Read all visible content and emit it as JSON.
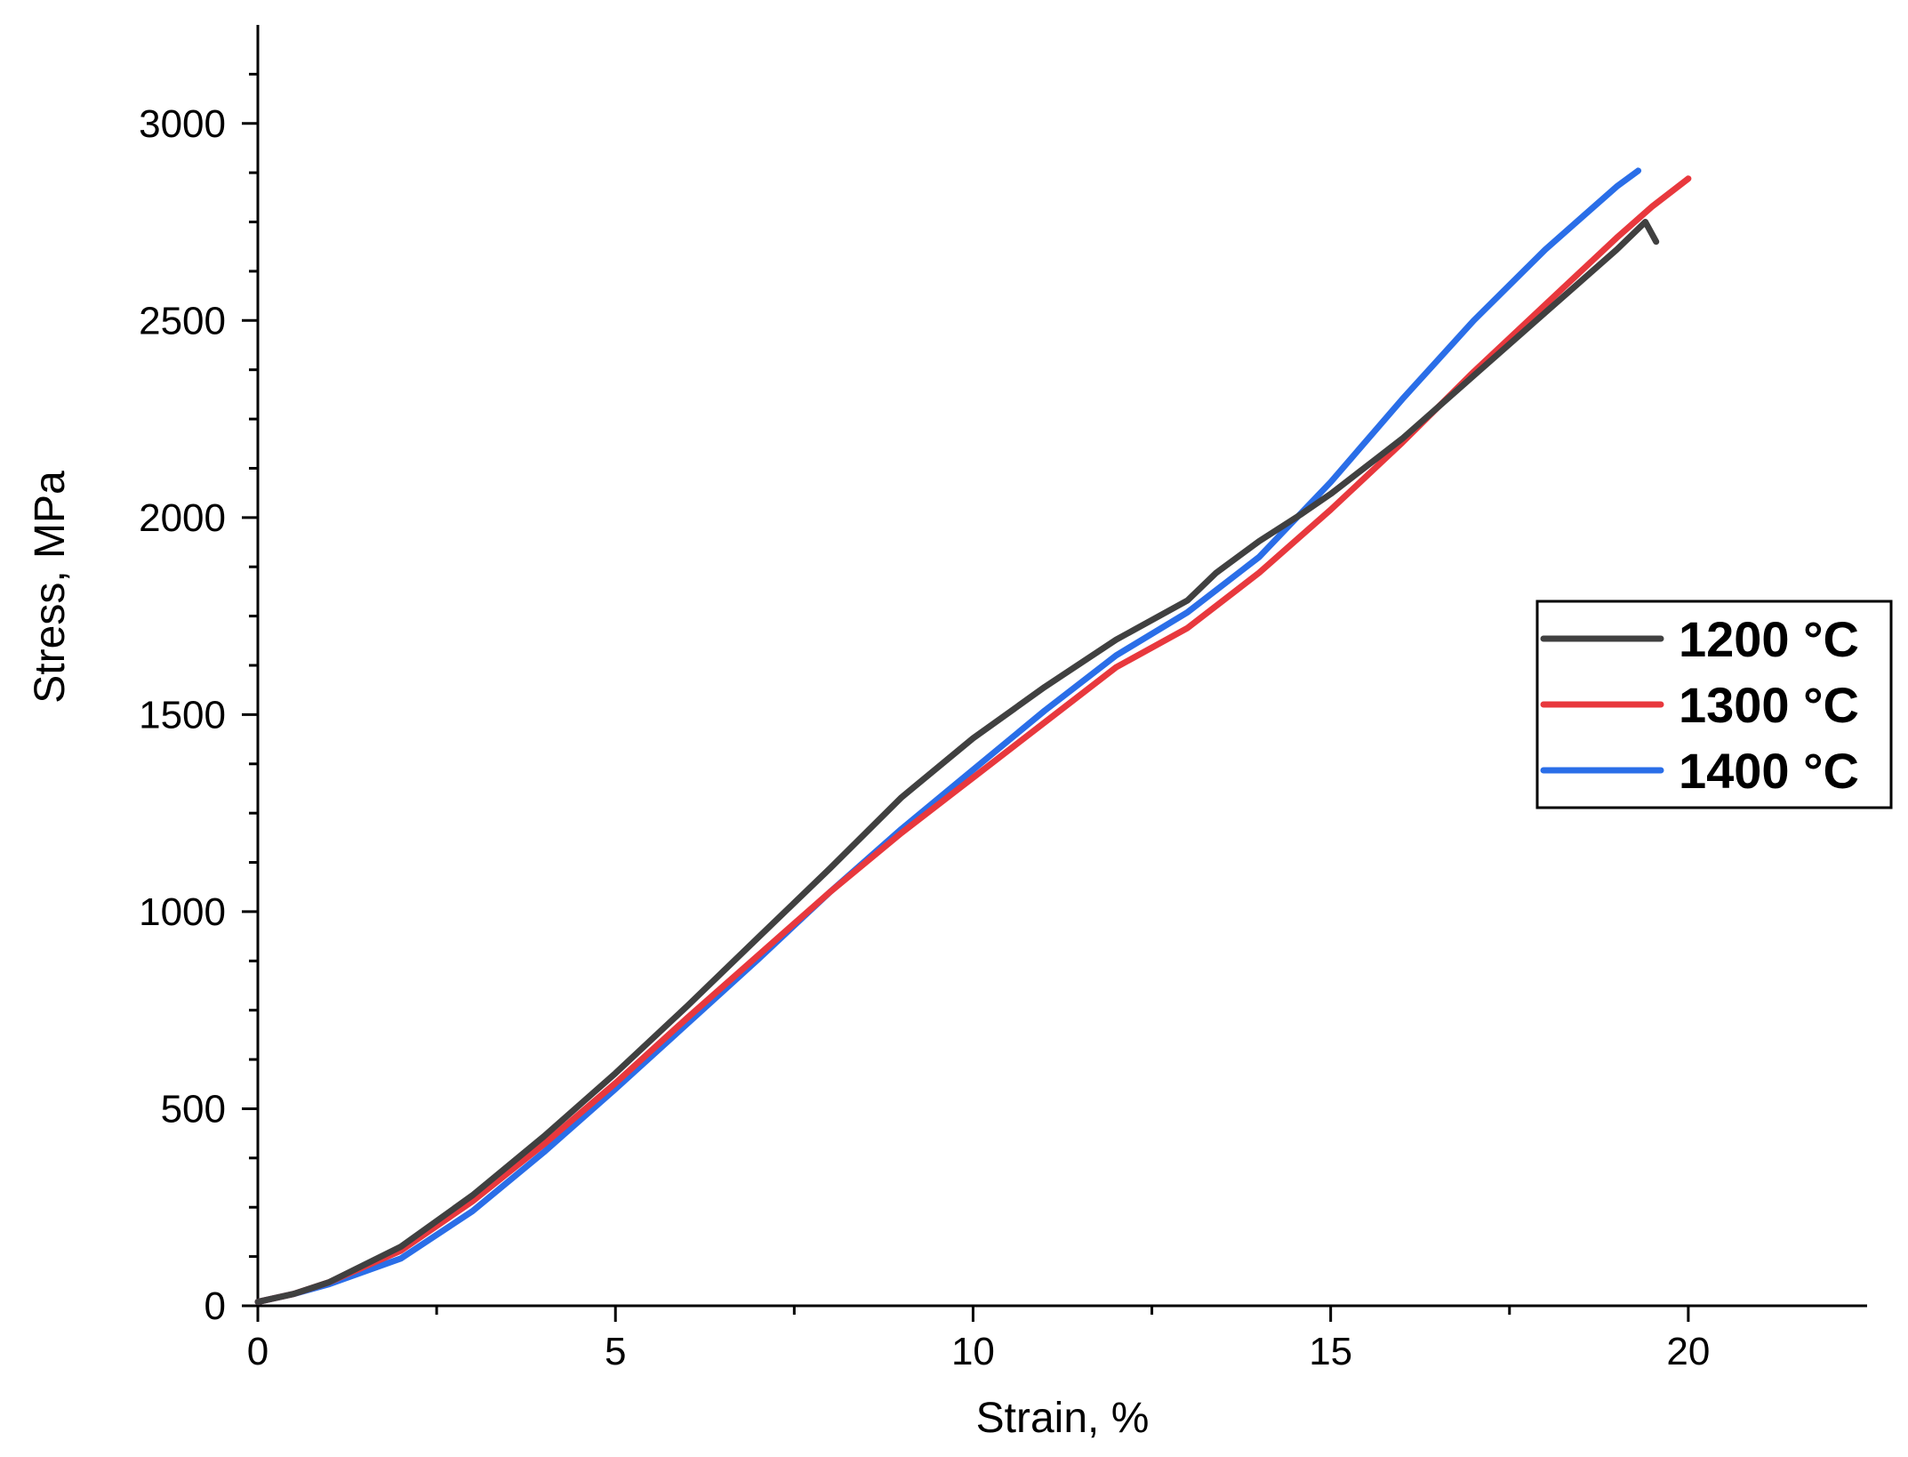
{
  "chart_data": {
    "type": "line",
    "title": "",
    "xlabel": "Strain, %",
    "ylabel": "Stress, MPa",
    "xlim": [
      0,
      22.5
    ],
    "ylim": [
      0,
      3250
    ],
    "xticks": [
      0,
      5,
      10,
      15,
      20
    ],
    "yticks": [
      0,
      500,
      1000,
      1500,
      2000,
      2500,
      3000
    ],
    "grid": false,
    "legend_position": "right",
    "series": [
      {
        "name": "1200 °C",
        "color": "#404040",
        "points": [
          [
            0,
            10
          ],
          [
            0.5,
            30
          ],
          [
            1,
            60
          ],
          [
            2,
            150
          ],
          [
            3,
            280
          ],
          [
            4,
            430
          ],
          [
            5,
            590
          ],
          [
            6,
            760
          ],
          [
            7,
            935
          ],
          [
            8,
            1110
          ],
          [
            9,
            1290
          ],
          [
            10,
            1440
          ],
          [
            11,
            1570
          ],
          [
            12,
            1690
          ],
          [
            13,
            1790
          ],
          [
            13.4,
            1860
          ],
          [
            14,
            1940
          ],
          [
            14.6,
            2010
          ],
          [
            15,
            2060
          ],
          [
            16,
            2200
          ],
          [
            17,
            2360
          ],
          [
            18,
            2520
          ],
          [
            19,
            2680
          ],
          [
            19.4,
            2750
          ],
          [
            19.55,
            2700
          ]
        ]
      },
      {
        "name": "1300 °C",
        "color": "#e8383d",
        "points": [
          [
            0,
            10
          ],
          [
            0.5,
            30
          ],
          [
            1,
            60
          ],
          [
            2,
            140
          ],
          [
            3,
            265
          ],
          [
            4,
            410
          ],
          [
            5,
            565
          ],
          [
            6,
            730
          ],
          [
            7,
            890
          ],
          [
            8,
            1050
          ],
          [
            9,
            1200
          ],
          [
            10,
            1340
          ],
          [
            11,
            1480
          ],
          [
            12,
            1620
          ],
          [
            13,
            1720
          ],
          [
            14,
            1860
          ],
          [
            15,
            2020
          ],
          [
            16,
            2190
          ],
          [
            17,
            2370
          ],
          [
            18,
            2540
          ],
          [
            19,
            2710
          ],
          [
            19.5,
            2790
          ],
          [
            20,
            2860
          ]
        ]
      },
      {
        "name": "1400 °C",
        "color": "#2a6ee8",
        "points": [
          [
            0,
            10
          ],
          [
            0.5,
            30
          ],
          [
            1,
            55
          ],
          [
            2,
            120
          ],
          [
            3,
            240
          ],
          [
            4,
            390
          ],
          [
            5,
            550
          ],
          [
            6,
            715
          ],
          [
            7,
            880
          ],
          [
            8,
            1050
          ],
          [
            9,
            1210
          ],
          [
            10,
            1360
          ],
          [
            11,
            1510
          ],
          [
            12,
            1650
          ],
          [
            13,
            1760
          ],
          [
            14,
            1900
          ],
          [
            15,
            2090
          ],
          [
            16,
            2300
          ],
          [
            17,
            2500
          ],
          [
            18,
            2680
          ],
          [
            19,
            2840
          ],
          [
            19.3,
            2880
          ]
        ]
      }
    ]
  }
}
